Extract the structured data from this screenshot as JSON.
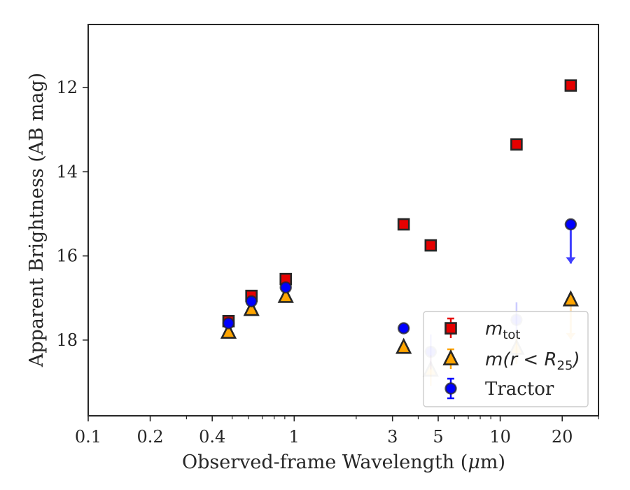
{
  "chart_data": {
    "type": "scatter",
    "xlabel_prefix": "Observed-frame Wavelength (",
    "xlabel_mu": "μ",
    "xlabel_suffix": "m)",
    "ylabel": "Apparent Brightness (AB mag)",
    "x_scale": "log",
    "xlim": [
      0.1,
      30
    ],
    "ylim": [
      19.8,
      10.5
    ],
    "y_inverted": true,
    "grid": false,
    "legend_position": "lower-right",
    "x_major_ticks": [
      {
        "value": 0.1,
        "label": "0.1"
      },
      {
        "value": 0.2,
        "label": "0.2"
      },
      {
        "value": 0.4,
        "label": "0.4"
      },
      {
        "value": 1,
        "label": "1"
      },
      {
        "value": 3,
        "label": "3"
      },
      {
        "value": 5,
        "label": "5"
      },
      {
        "value": 10,
        "label": "10"
      },
      {
        "value": 20,
        "label": "20"
      }
    ],
    "x_minor_ticks": [
      0.3,
      0.5,
      0.6,
      0.7,
      0.8,
      0.9,
      2,
      4,
      6,
      7,
      8,
      9,
      30
    ],
    "y_ticks": [
      {
        "value": 12,
        "label": "12"
      },
      {
        "value": 14,
        "label": "14"
      },
      {
        "value": 16,
        "label": "16"
      },
      {
        "value": 18,
        "label": "18"
      }
    ],
    "series": [
      {
        "name": "m_tot",
        "legend_main": "m",
        "legend_sub": "tot",
        "marker": "square",
        "color": "#e60000",
        "edge_color": "#262626",
        "points": [
          {
            "x": 0.48,
            "y": 17.55
          },
          {
            "x": 0.62,
            "y": 16.95
          },
          {
            "x": 0.91,
            "y": 16.55
          },
          {
            "x": 3.4,
            "y": 15.25
          },
          {
            "x": 4.6,
            "y": 15.75
          },
          {
            "x": 12.0,
            "y": 13.35
          },
          {
            "x": 22.0,
            "y": 11.95
          }
        ]
      },
      {
        "name": "m(r < R25)",
        "legend_main": "m(r < R",
        "legend_sub": "25",
        "legend_close": ")",
        "marker": "triangle",
        "color": "#ffa500",
        "edge_color": "#262626",
        "points": [
          {
            "x": 0.48,
            "y": 17.82,
            "faded": false
          },
          {
            "x": 0.62,
            "y": 17.28,
            "faded": false
          },
          {
            "x": 0.91,
            "y": 16.97,
            "faded": false
          },
          {
            "x": 3.4,
            "y": 18.18,
            "faded": false
          },
          {
            "x": 4.6,
            "y": 18.72,
            "faded": true
          },
          {
            "x": 12.0,
            "y": 18.2,
            "faded": true
          },
          {
            "x": 22.0,
            "y": 17.05,
            "faded": false,
            "upper_limit": true
          }
        ]
      },
      {
        "name": "Tractor",
        "legend_main": "Tractor",
        "marker": "circle",
        "color": "#0000ff",
        "edge_color": "#262626",
        "points": [
          {
            "x": 0.48,
            "y": 17.6,
            "faded": false
          },
          {
            "x": 0.62,
            "y": 17.08,
            "faded": false
          },
          {
            "x": 0.91,
            "y": 16.75,
            "faded": false
          },
          {
            "x": 3.4,
            "y": 17.72,
            "faded": false
          },
          {
            "x": 4.6,
            "y": 18.28,
            "faded": true
          },
          {
            "x": 12.0,
            "y": 17.52,
            "faded": true
          },
          {
            "x": 22.0,
            "y": 15.25,
            "faded": false,
            "upper_limit": true
          }
        ]
      }
    ]
  }
}
